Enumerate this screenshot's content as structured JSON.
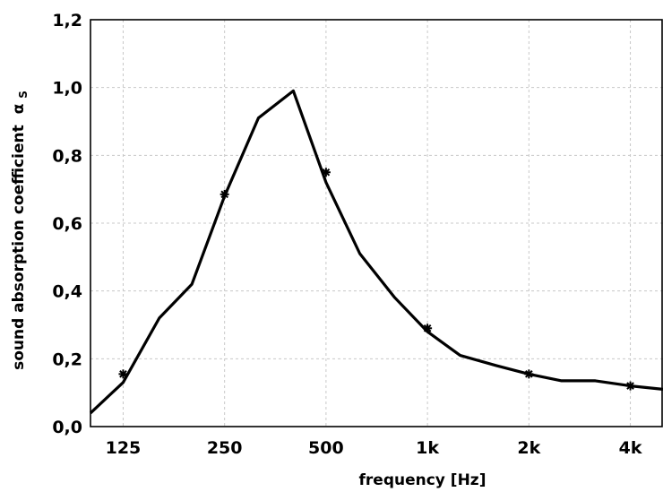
{
  "chart_data": {
    "type": "line",
    "xlabel": "frequency [Hz]",
    "ylabel": "sound absorption coefficient",
    "ylabel_symbol": "α",
    "ylabel_subscript": "S",
    "x_scale": "log",
    "xlim": [
      100,
      5000
    ],
    "ylim": [
      0,
      1.2
    ],
    "x_ticks": [
      {
        "value": 125,
        "label": "125"
      },
      {
        "value": 250,
        "label": "250"
      },
      {
        "value": 500,
        "label": "500"
      },
      {
        "value": 1000,
        "label": "1k"
      },
      {
        "value": 2000,
        "label": "2k"
      },
      {
        "value": 4000,
        "label": "4k"
      }
    ],
    "y_ticks": [
      {
        "value": 0.0,
        "label": "0,0"
      },
      {
        "value": 0.2,
        "label": "0,2"
      },
      {
        "value": 0.4,
        "label": "0,4"
      },
      {
        "value": 0.6,
        "label": "0,6"
      },
      {
        "value": 0.8,
        "label": "0,8"
      },
      {
        "value": 1.0,
        "label": "1,0"
      },
      {
        "value": 1.2,
        "label": "1,2"
      }
    ],
    "grid": true,
    "line": {
      "x": [
        100,
        125,
        160,
        200,
        250,
        315,
        400,
        500,
        630,
        800,
        1000,
        1250,
        1600,
        2000,
        2500,
        3150,
        4000,
        5000
      ],
      "y": [
        0.04,
        0.13,
        0.32,
        0.42,
        0.68,
        0.91,
        0.99,
        0.72,
        0.51,
        0.38,
        0.28,
        0.21,
        0.18,
        0.155,
        0.135,
        0.135,
        0.12,
        0.11
      ]
    },
    "markers": {
      "x": [
        125,
        250,
        500,
        1000,
        2000,
        4000
      ],
      "y": [
        0.155,
        0.685,
        0.75,
        0.29,
        0.155,
        0.12
      ]
    }
  }
}
